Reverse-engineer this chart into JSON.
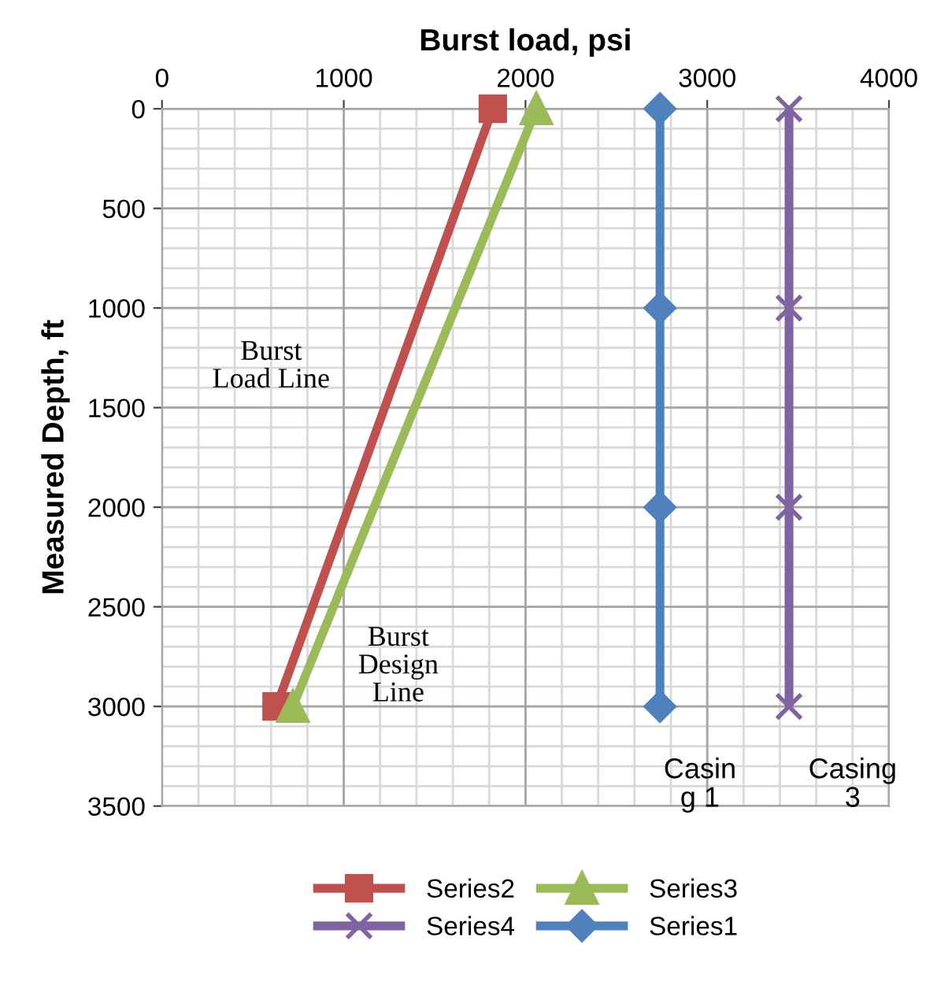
{
  "chart_data": {
    "type": "line",
    "xlabel": "Burst load, psi",
    "ylabel": "Measured Depth, ft",
    "xlim": [
      0,
      4000
    ],
    "xticks": [
      0,
      1000,
      2000,
      3000,
      4000
    ],
    "ylim": [
      3500,
      0
    ],
    "yticks": [
      0,
      500,
      1000,
      1500,
      2000,
      2500,
      3000,
      3500
    ],
    "grid": true,
    "legend": "bottom",
    "series": [
      {
        "name": "Series2",
        "color": "#c0504d",
        "marker": "square",
        "x": [
          1820,
          630
        ],
        "values": [
          0,
          3000
        ]
      },
      {
        "name": "Series3",
        "color": "#9bbb59",
        "marker": "triangle",
        "x": [
          2060,
          720
        ],
        "values": [
          0,
          3000
        ]
      },
      {
        "name": "Series4",
        "color": "#8064a2",
        "marker": "cross",
        "x": [
          3450,
          3450,
          3450,
          3450
        ],
        "values": [
          0,
          1000,
          2000,
          3000
        ]
      },
      {
        "name": "Series1",
        "color": "#4f81bd",
        "marker": "diamond",
        "x": [
          2740,
          2740,
          2740,
          2740
        ],
        "values": [
          0,
          1000,
          2000,
          3000
        ]
      }
    ],
    "annotations": [
      "Burst\nLoad Line",
      "Burst\nDesign\nLine",
      "Casin\ng 1",
      "Casing\n3"
    ]
  }
}
